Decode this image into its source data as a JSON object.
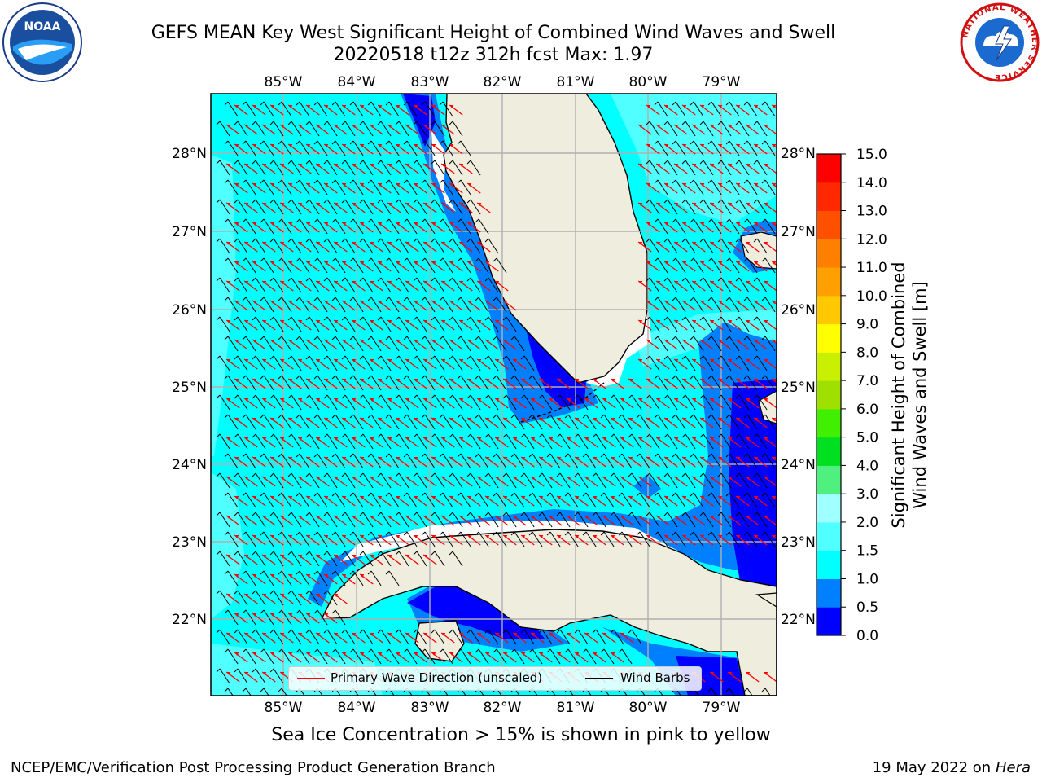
{
  "header": {
    "title_line1": "GEFS MEAN Key West Significant Height of Combined Wind Waves and Swell",
    "title_line2": "20220518 t12z 312h fcst   Max: 1.97"
  },
  "logos": {
    "left": "NOAA",
    "right": "NATIONAL WEATHER SERVICE"
  },
  "map": {
    "lon_ticks": [
      "85°W",
      "84°W",
      "83°W",
      "82°W",
      "81°W",
      "80°W",
      "79°W"
    ],
    "lat_ticks": [
      "28°N",
      "27°N",
      "26°N",
      "25°N",
      "24°N",
      "23°N",
      "22°N"
    ],
    "colors": {
      "land": "#efedde",
      "ocean": "#00ffff",
      "wave": "#ff0000",
      "barb": "#000000",
      "grid": "#b0b0b0"
    }
  },
  "legend": {
    "wave_label": "Primary Wave Direction (unscaled)",
    "barb_label": "Wind Barbs"
  },
  "colorbar": {
    "label_line1": "Significant Height of Combined",
    "label_line2": "Wind Waves and Swell [m]",
    "ticks": [
      "15.0",
      "14.0",
      "13.0",
      "12.0",
      "11.0",
      "10.0",
      "9.0",
      "8.0",
      "7.0",
      "6.0",
      "5.0",
      "4.0",
      "3.0",
      "2.0",
      "1.5",
      "1.0",
      "0.5",
      "0.0"
    ],
    "colors": [
      "#0000ff",
      "#0080ff",
      "#00ffff",
      "#50ffff",
      "#a0ffff",
      "#50f080",
      "#00e020",
      "#40f000",
      "#a0e000",
      "#c8f000",
      "#ffff00",
      "#ffc800",
      "#ffa000",
      "#ff8000",
      "#ff5000",
      "#ff2800",
      "#ff0000"
    ]
  },
  "footer": {
    "note": "Sea Ice Concentration > 15% is shown in pink to yellow",
    "credit": "NCEP/EMC/Verification Post Processing Product Generation Branch",
    "date": "19 May 2022 on",
    "host": "Hera"
  }
}
